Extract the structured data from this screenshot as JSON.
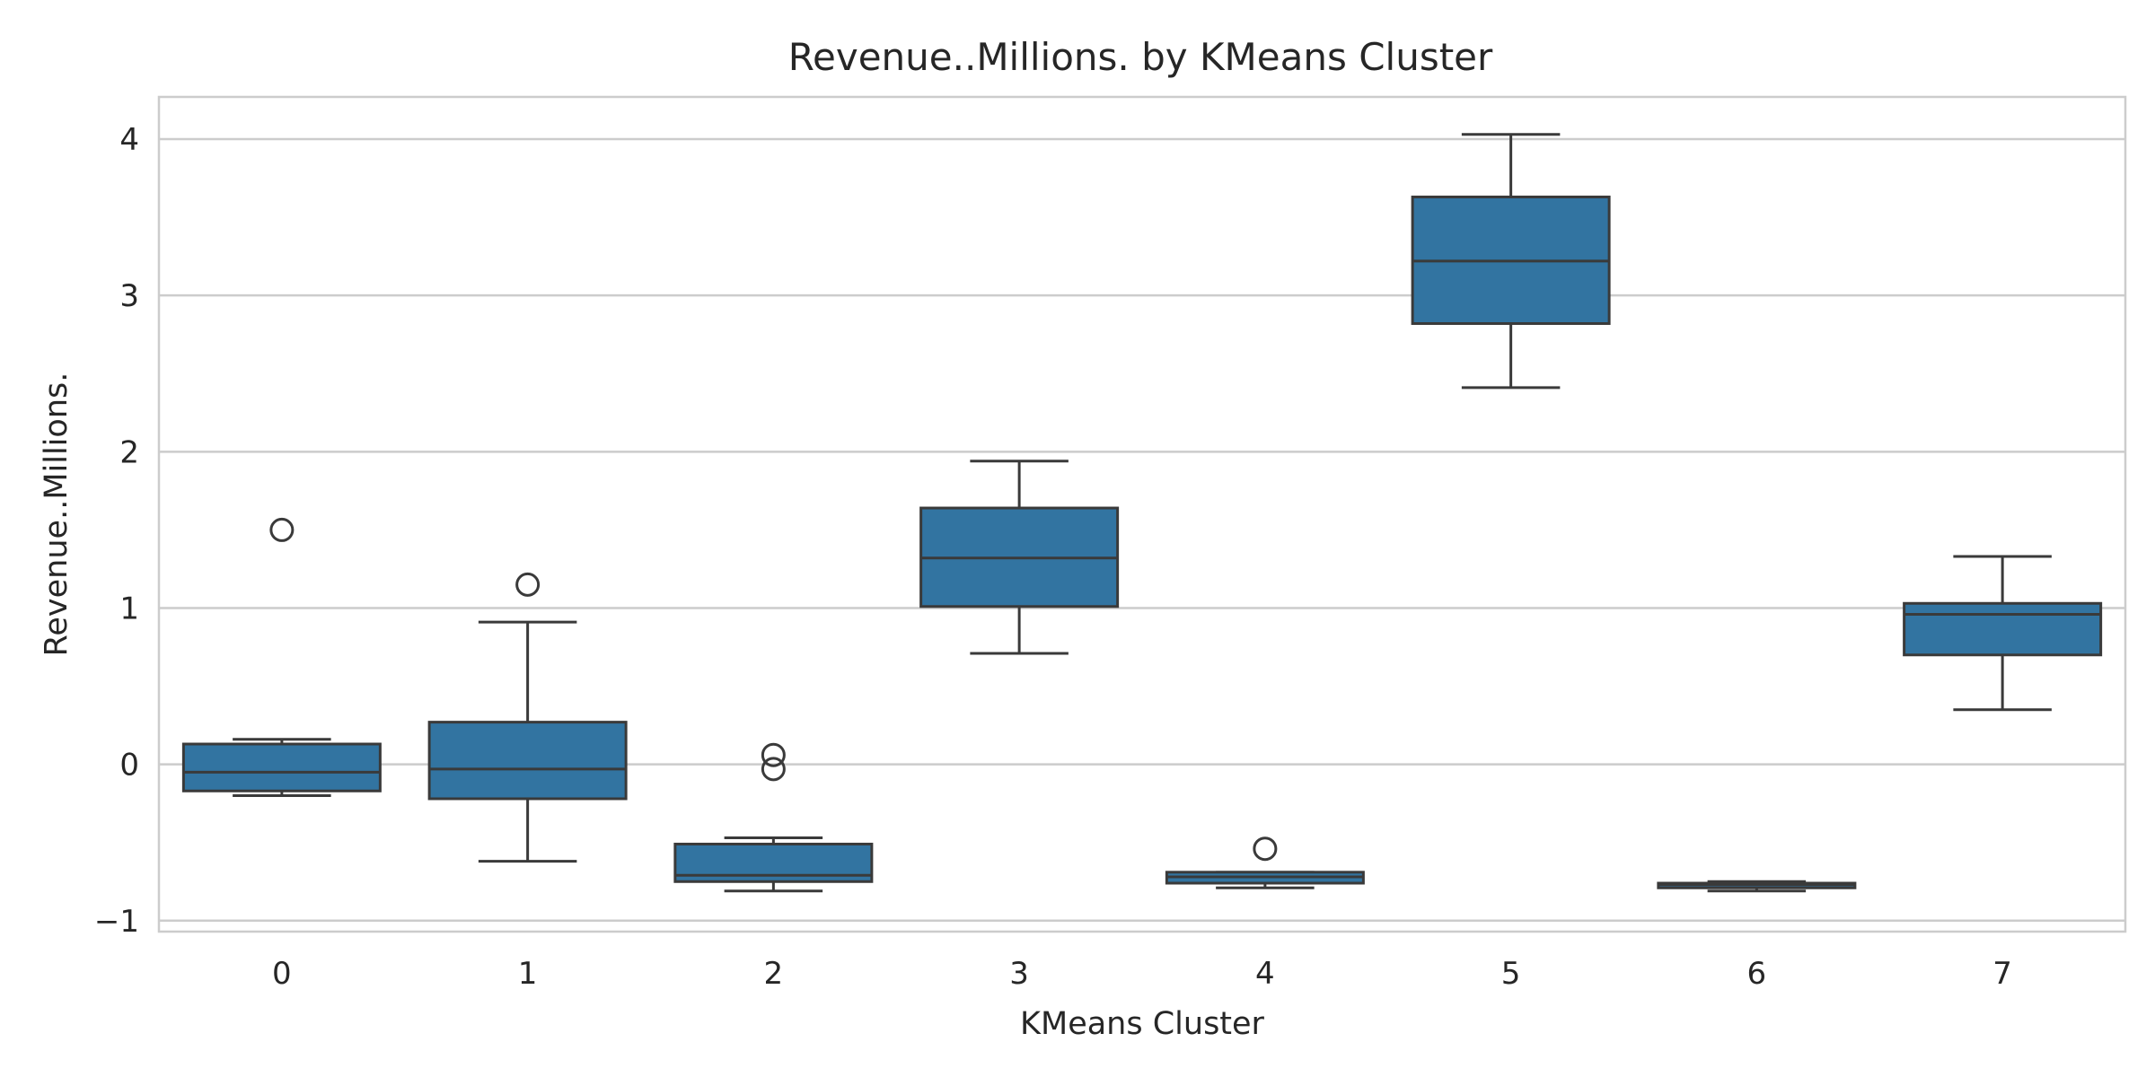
{
  "chart_data": {
    "type": "box",
    "title": "Revenue..Millions. by KMeans Cluster",
    "xlabel": "KMeans Cluster",
    "ylabel": "Revenue..Millions.",
    "ylim": [
      -1.07,
      4.27
    ],
    "yticks": [
      {
        "value": -1,
        "label": "−1"
      },
      {
        "value": 0,
        "label": "0"
      },
      {
        "value": 1,
        "label": "1"
      },
      {
        "value": 2,
        "label": "2"
      },
      {
        "value": 3,
        "label": "3"
      },
      {
        "value": 4,
        "label": "4"
      }
    ],
    "grid": true,
    "box_color": "#3274a1",
    "line_color": "#3a3a3a",
    "categories": [
      "0",
      "1",
      "2",
      "3",
      "4",
      "5",
      "6",
      "7"
    ],
    "boxes": [
      {
        "category": "0",
        "whisker_low": -0.2,
        "q1": -0.17,
        "median": -0.05,
        "q3": 0.13,
        "whisker_high": 0.16,
        "outliers": [
          1.5
        ]
      },
      {
        "category": "1",
        "whisker_low": -0.62,
        "q1": -0.22,
        "median": -0.03,
        "q3": 0.27,
        "whisker_high": 0.91,
        "outliers": [
          1.15
        ]
      },
      {
        "category": "2",
        "whisker_low": -0.81,
        "q1": -0.75,
        "median": -0.71,
        "q3": -0.51,
        "whisker_high": -0.47,
        "outliers": [
          0.06,
          -0.03
        ]
      },
      {
        "category": "3",
        "whisker_low": 0.71,
        "q1": 1.01,
        "median": 1.32,
        "q3": 1.64,
        "whisker_high": 1.94,
        "outliers": []
      },
      {
        "category": "4",
        "whisker_low": -0.79,
        "q1": -0.76,
        "median": -0.72,
        "q3": -0.69,
        "whisker_high": -0.69,
        "outliers": [
          -0.54
        ]
      },
      {
        "category": "5",
        "whisker_low": 2.41,
        "q1": 2.82,
        "median": 3.22,
        "q3": 3.63,
        "whisker_high": 4.03,
        "outliers": []
      },
      {
        "category": "6",
        "whisker_low": -0.81,
        "q1": -0.79,
        "median": -0.77,
        "q3": -0.76,
        "whisker_high": -0.75,
        "outliers": []
      },
      {
        "category": "7",
        "whisker_low": 0.35,
        "q1": 0.7,
        "median": 0.96,
        "q3": 1.03,
        "whisker_high": 1.33,
        "outliers": []
      }
    ]
  }
}
